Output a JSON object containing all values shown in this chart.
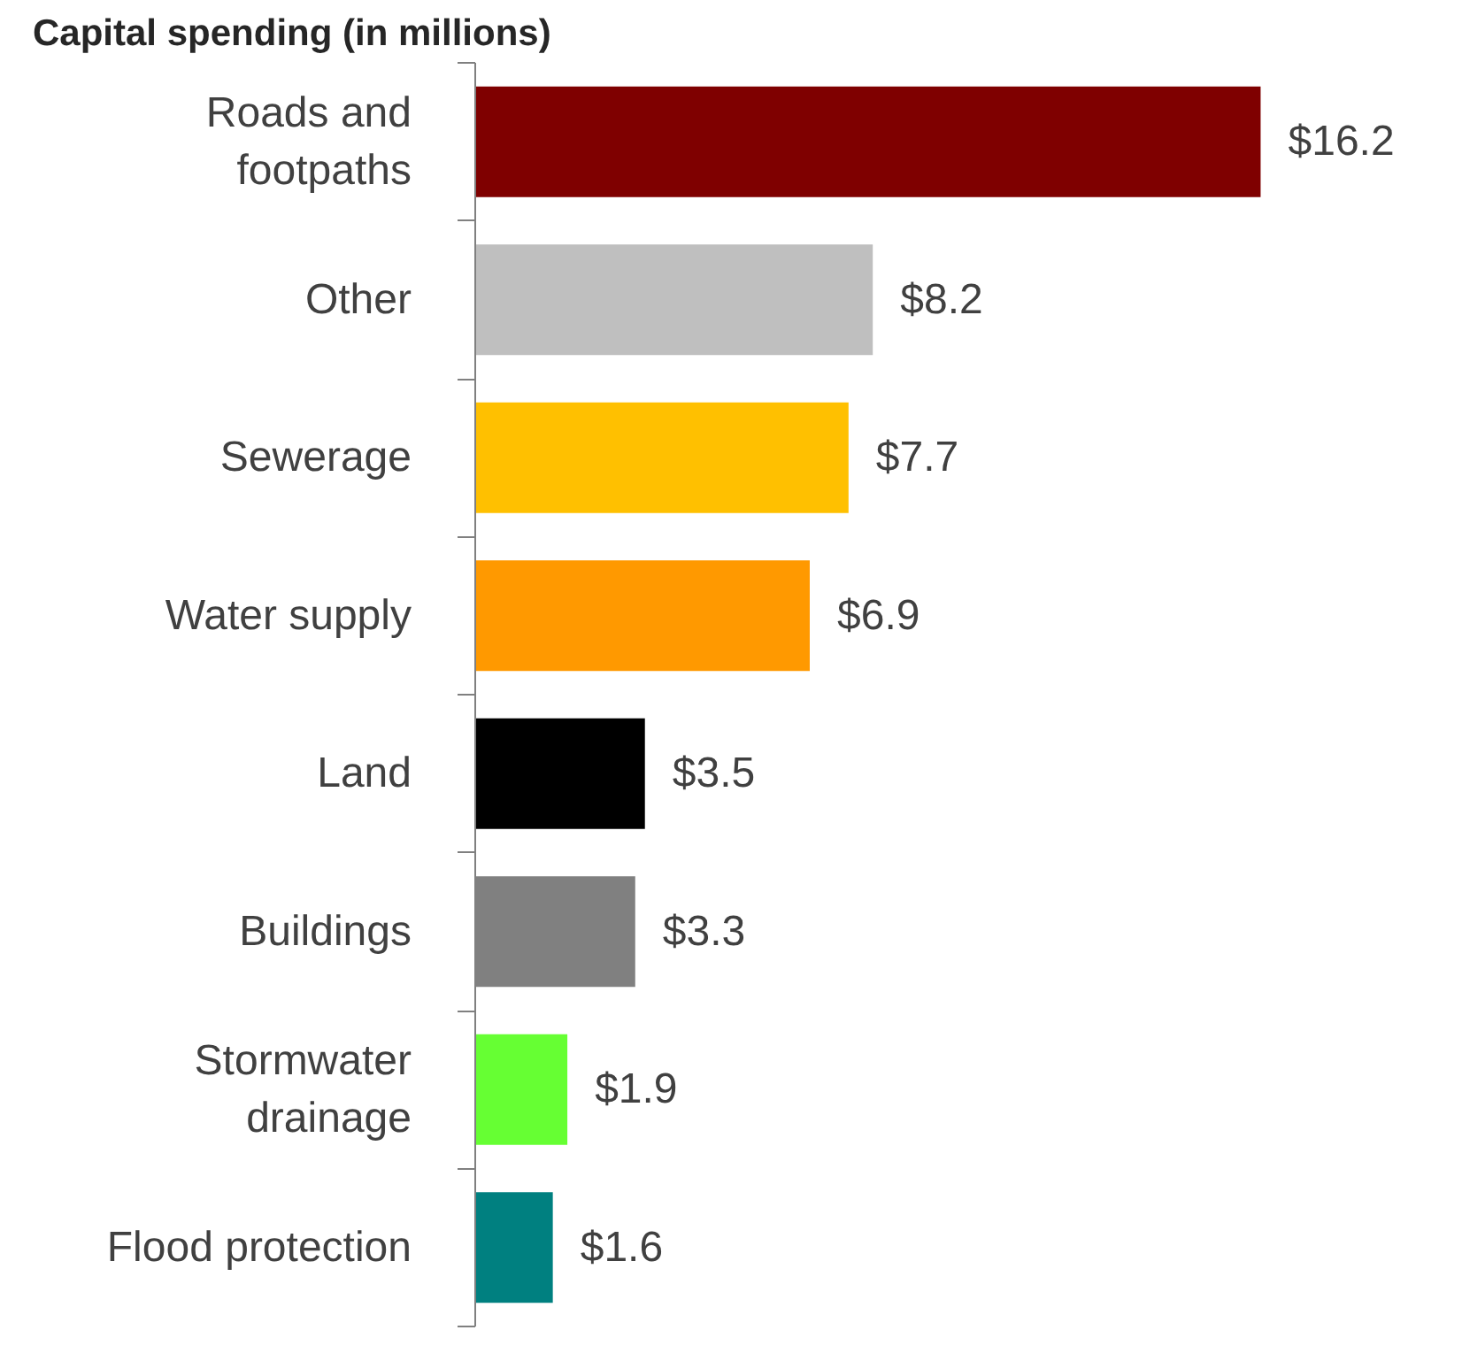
{
  "chart_data": {
    "type": "bar",
    "title": "Capital spending (in millions)",
    "orientation": "horizontal",
    "categories": [
      "Roads and footpaths",
      "Other",
      "Sewerage",
      "Water supply",
      "Land",
      "Buildings",
      "Stormwater drainage",
      "Flood protection"
    ],
    "values": [
      16.2,
      8.2,
      7.7,
      6.9,
      3.5,
      3.3,
      1.9,
      1.6
    ],
    "colors": [
      "#7f0000",
      "#bfbfbf",
      "#ffc000",
      "#ff9900",
      "#000000",
      "#808080",
      "#66ff33",
      "#008080"
    ],
    "value_labels": [
      "$16.2",
      "$8.2",
      "$7.7",
      "$6.9",
      "$3.5",
      "$3.3",
      "$1.9",
      "$1.6"
    ]
  }
}
